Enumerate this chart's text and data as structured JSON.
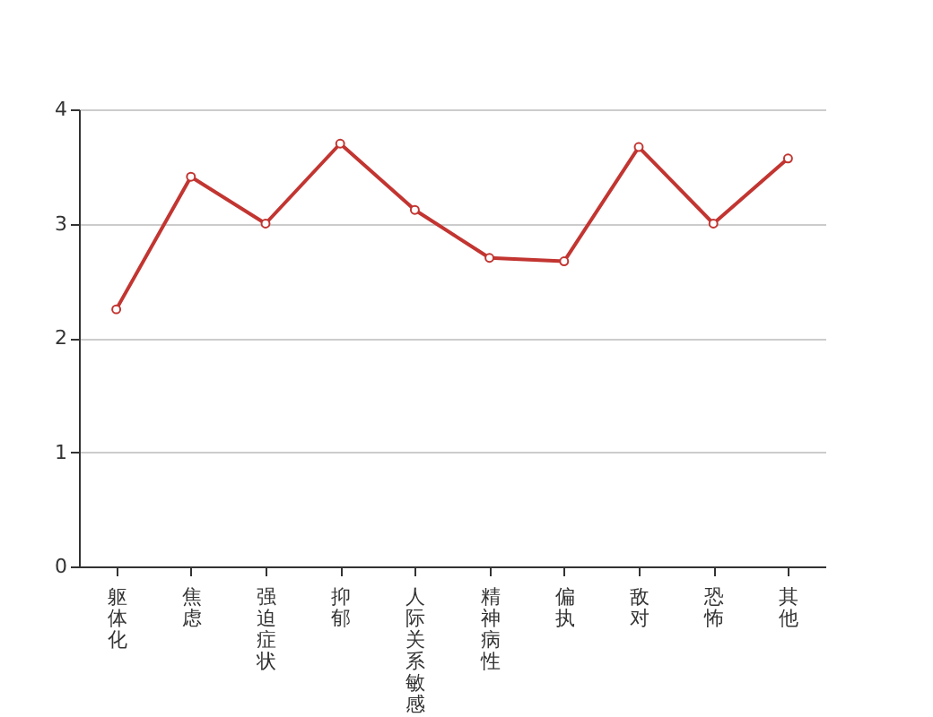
{
  "chart_data": {
    "type": "line",
    "categories": [
      "躯体化",
      "焦虑",
      "强迫症状",
      "抑郁",
      "人际关系敏感",
      "精神病性",
      "偏执",
      "敌对",
      "恐怖",
      "其他"
    ],
    "series": [
      {
        "color": "#c23531",
        "values": [
          2.25,
          3.41,
          3.0,
          3.7,
          3.12,
          2.7,
          2.67,
          3.67,
          3.0,
          3.57
        ]
      }
    ],
    "ylim": [
      0,
      4
    ],
    "yticks": [
      0,
      1,
      2,
      3,
      4
    ],
    "grid": "y",
    "marker": "circle",
    "line_style": "solid"
  }
}
